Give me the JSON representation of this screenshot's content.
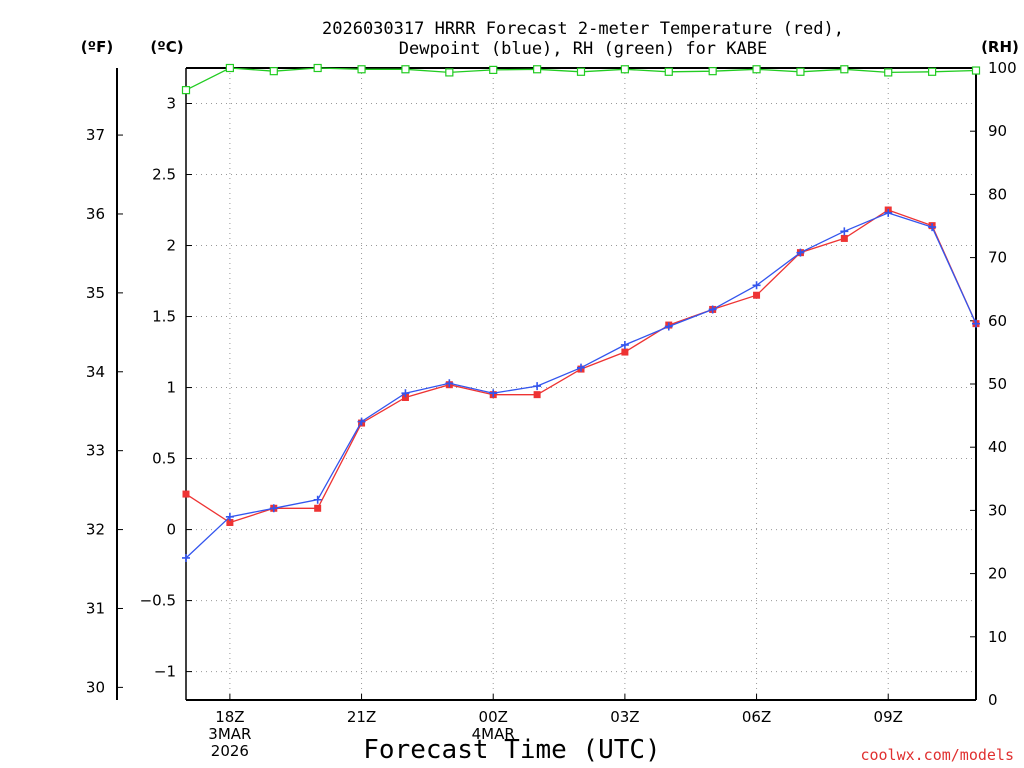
{
  "chart_data": {
    "type": "line",
    "title_line1": "2026030317 HRRR Forecast 2-meter Temperature (red),",
    "title_line2": "Dewpoint (blue), RH (green) for KABE",
    "xlabel": "Forecast Time (UTC)",
    "credit": "coolwx.com/models",
    "unit_labels": {
      "fahrenheit": "(ºF)",
      "celsius": "(ºC)",
      "rh": "(RH)"
    },
    "x_hours": [
      17,
      18,
      19,
      20,
      21,
      22,
      23,
      24,
      25,
      26,
      27,
      28,
      29,
      30,
      31,
      32,
      33,
      34,
      35
    ],
    "x_ticks": [
      {
        "hour": 18,
        "label": "18Z",
        "sub": [
          "3MAR",
          "2026"
        ]
      },
      {
        "hour": 21,
        "label": "21Z",
        "sub": []
      },
      {
        "hour": 24,
        "label": "00Z",
        "sub": [
          "4MAR"
        ]
      },
      {
        "hour": 27,
        "label": "03Z",
        "sub": []
      },
      {
        "hour": 30,
        "label": "06Z",
        "sub": []
      },
      {
        "hour": 33,
        "label": "09Z",
        "sub": []
      }
    ],
    "x_range": [
      17,
      35
    ],
    "ylim_celsius": [
      -1.2,
      3.25
    ],
    "ylim_rh": [
      0,
      100
    ],
    "celsius_ticks": [
      -1,
      -0.5,
      0,
      0.5,
      1,
      1.5,
      2,
      2.5,
      3
    ],
    "celsius_tick_labels": [
      "−1",
      "−0.5",
      "0",
      "0.5",
      "1",
      "1.5",
      "2",
      "2.5",
      "3"
    ],
    "fahrenheit_ticks": [
      30,
      31,
      32,
      33,
      34,
      35,
      36,
      37
    ],
    "rh_ticks": [
      0,
      10,
      20,
      30,
      40,
      50,
      60,
      70,
      80,
      90,
      100
    ],
    "grid": true,
    "series": [
      {
        "name": "Temperature",
        "color": "#ee3333",
        "marker": "square",
        "values": [
          0.25,
          0.05,
          0.15,
          0.15,
          0.75,
          0.93,
          1.02,
          0.95,
          0.95,
          1.13,
          1.25,
          1.44,
          1.55,
          1.65,
          1.95,
          2.05,
          2.25,
          2.14,
          1.45
        ]
      },
      {
        "name": "Dewpoint",
        "color": "#3355ee",
        "marker": "plus",
        "values": [
          -0.2,
          0.09,
          0.15,
          0.21,
          0.76,
          0.96,
          1.03,
          0.96,
          1.01,
          1.14,
          1.3,
          1.43,
          1.55,
          1.72,
          1.95,
          2.1,
          2.23,
          2.13,
          1.45
        ]
      },
      {
        "name": "RH",
        "color": "#22cc22",
        "marker": "open-square",
        "axis": "rh",
        "values": [
          96.5,
          100,
          99.5,
          100,
          99.8,
          99.8,
          99.3,
          99.7,
          99.8,
          99.4,
          99.8,
          99.4,
          99.5,
          99.8,
          99.4,
          99.8,
          99.3,
          99.4,
          99.6
        ]
      }
    ]
  }
}
